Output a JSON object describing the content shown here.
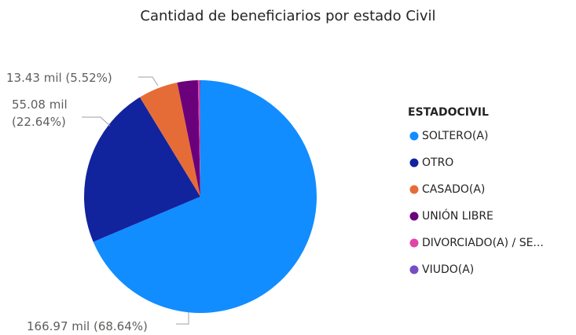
{
  "chart_data": {
    "type": "pie",
    "title": "Cantidad de beneficiarios por estado Civil",
    "legend_title": "ESTADOCIVIL",
    "categories": [
      "SOLTERO(A)",
      "OTRO",
      "CASADO(A)",
      "UNIÓN LIBRE",
      "DIVORCIADO(A) / SE...",
      "VIUDO(A)"
    ],
    "values": [
      166.97,
      55.08,
      13.43,
      6.95,
      0.55,
      0.27
    ],
    "value_labels": [
      "166.97 mil (68.64%)",
      "55.08 mil (22.64%)",
      "13.43 mil (5.52%)",
      null,
      null,
      null
    ],
    "colors": [
      "#118DFF",
      "#12239E",
      "#E66C37",
      "#6B007B",
      "#E044A7",
      "#744EC2"
    ],
    "legend": "right"
  }
}
